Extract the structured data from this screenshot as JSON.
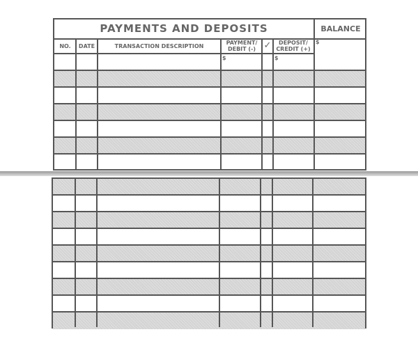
{
  "register": {
    "title": "PAYMENTS AND DEPOSITS",
    "balance_label": "BALANCE",
    "columns": [
      "NO.",
      "DATE",
      "TRANSACTION DESCRIPTION",
      "PAYMENT/ DEBIT (-)",
      "✓",
      "DEPOSIT/ CREDIT (+)"
    ],
    "currency_symbol": "$",
    "top_rows": 7,
    "bottom_rows": 9,
    "shade_color": "#d4d4d4",
    "line_color": "#555555"
  }
}
